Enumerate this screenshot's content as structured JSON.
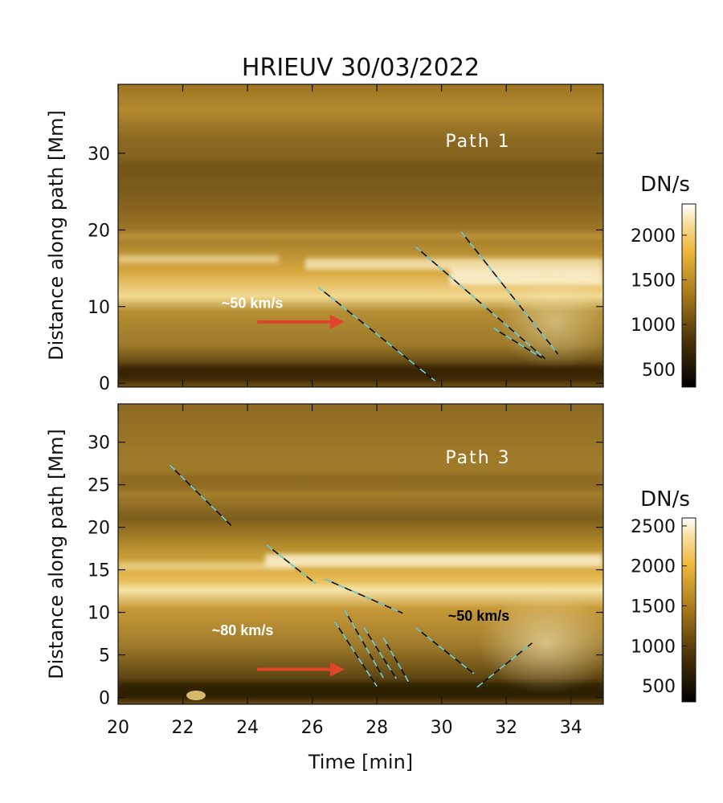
{
  "figure": {
    "title": "HRIEUV 30/03/2022",
    "xlabel": "Time [min]",
    "x_ticks": [
      20,
      22,
      24,
      26,
      28,
      30,
      32,
      34
    ]
  },
  "colors": {
    "fastline": "#101010",
    "dash_cyan": "#6fd6e0",
    "arrow": "#e0452c",
    "panel_base": "#8a6418"
  },
  "chart_data": [
    {
      "type": "heatmap",
      "title": "Path 1",
      "xlabel": "Time [min]",
      "ylabel": "Distance along path [Mm]",
      "xlim": [
        20,
        35
      ],
      "ylim": [
        -0.5,
        39
      ],
      "y_ticks": [
        0,
        10,
        20,
        30
      ],
      "colorbar": {
        "label": "DN/s",
        "range": [
          300,
          2350
        ],
        "ticks": [
          500,
          1000,
          1500,
          2000
        ]
      },
      "annotations": [
        {
          "text": "~50 km/s",
          "x": 23.2,
          "y": 9.8,
          "color": "#ffffff"
        }
      ],
      "arrow": {
        "x0": 24.3,
        "y0": 8.0,
        "x1": 27.0,
        "y1": 8.0
      },
      "fits": [
        {
          "x": [
            26.2,
            29.8
          ],
          "y": [
            12.5,
            0.3
          ]
        },
        {
          "x": [
            29.2,
            33.2
          ],
          "y": [
            17.8,
            3.2
          ]
        },
        {
          "x": [
            30.6,
            33.6
          ],
          "y": [
            19.8,
            3.8
          ]
        },
        {
          "x": [
            31.6,
            33.1
          ],
          "y": [
            7.2,
            3.3
          ]
        }
      ]
    },
    {
      "type": "heatmap",
      "title": "Path 3",
      "xlabel": "Time [min]",
      "ylabel": "Distance along path [Mm]",
      "xlim": [
        20,
        35
      ],
      "ylim": [
        -0.8,
        34.5
      ],
      "y_ticks": [
        0,
        5,
        10,
        15,
        20,
        25,
        30
      ],
      "colorbar": {
        "label": "DN/s",
        "range": [
          300,
          2600
        ],
        "ticks": [
          500,
          1000,
          1500,
          2000,
          2500
        ]
      },
      "annotations": [
        {
          "text": "~80 km/s",
          "x": 22.9,
          "y": 7.3,
          "color": "#ffffff"
        },
        {
          "text": "~50 km/s",
          "x": 30.2,
          "y": 9.0,
          "color": "#000000"
        }
      ],
      "arrow": {
        "x0": 24.3,
        "y0": 3.3,
        "x1": 27.0,
        "y1": 3.3
      },
      "fits": [
        {
          "x": [
            21.6,
            23.5
          ],
          "y": [
            27.3,
            20.2
          ]
        },
        {
          "x": [
            24.6,
            26.1
          ],
          "y": [
            17.9,
            13.4
          ]
        },
        {
          "x": [
            26.4,
            28.8
          ],
          "y": [
            13.9,
            9.9
          ]
        },
        {
          "x": [
            26.7,
            28.0
          ],
          "y": [
            8.9,
            1.3
          ]
        },
        {
          "x": [
            27.0,
            28.2
          ],
          "y": [
            10.3,
            2.3
          ]
        },
        {
          "x": [
            27.6,
            28.6
          ],
          "y": [
            8.2,
            2.2
          ]
        },
        {
          "x": [
            28.2,
            29.0
          ],
          "y": [
            7.0,
            1.7
          ]
        },
        {
          "x": [
            29.2,
            31.0
          ],
          "y": [
            8.2,
            2.8
          ]
        },
        {
          "x": [
            31.1,
            32.8
          ],
          "y": [
            1.2,
            6.4
          ]
        }
      ]
    }
  ]
}
